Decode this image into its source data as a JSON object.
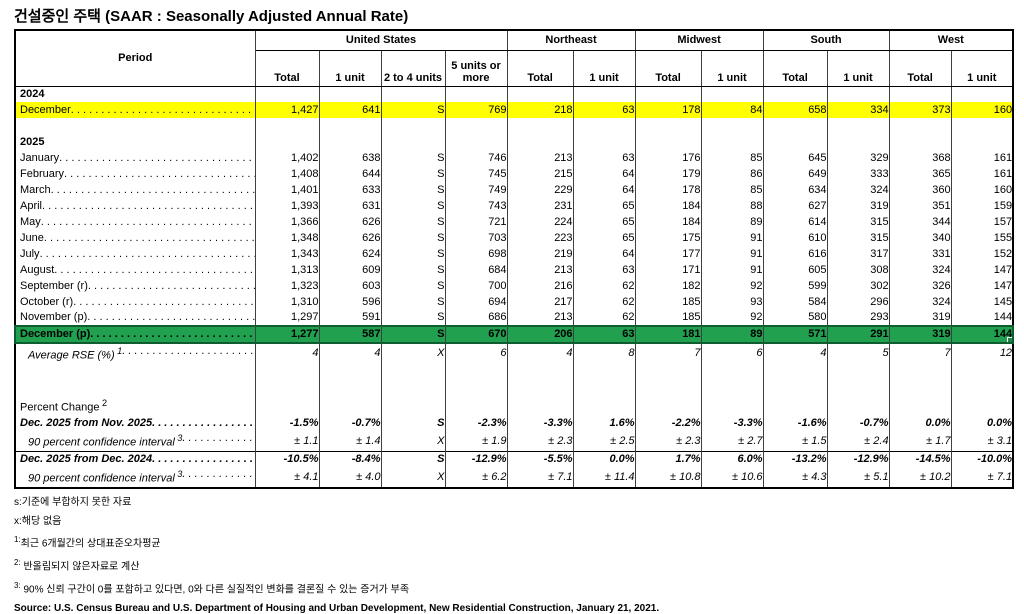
{
  "title": "건설중인 주택 (SAAR : Seasonally Adjusted Annual Rate)",
  "colors": {
    "highlight_yellow": "#ffff00",
    "highlight_green": "#21a050",
    "green_border": "#0e5c2f"
  },
  "table": {
    "period_header": "Period",
    "col_groups": [
      {
        "label": "United States",
        "span": 4
      },
      {
        "label": "Northeast",
        "span": 2
      },
      {
        "label": "Midwest",
        "span": 2
      },
      {
        "label": "South",
        "span": 2
      },
      {
        "label": "West",
        "span": 2
      }
    ],
    "sub_headers": [
      "Total",
      "1 unit",
      "2 to 4 units",
      "5 units or more",
      "Total",
      "1 unit",
      "Total",
      "1 unit",
      "Total",
      "1 unit",
      "Total",
      "1 unit"
    ],
    "col_ids": [
      "us-total",
      "us-1unit",
      "us-2to4",
      "us-5plus",
      "ne-total",
      "ne-1unit",
      "mw-total",
      "mw-1unit",
      "s-total",
      "s-1unit",
      "w-total",
      "w-1unit"
    ],
    "rows": [
      {
        "type": "year",
        "label": "2024"
      },
      {
        "type": "data",
        "highlight": "yellow",
        "label": "December",
        "values": [
          "1,427",
          "641",
          "S",
          "769",
          "218",
          "63",
          "178",
          "84",
          "658",
          "334",
          "373",
          "160"
        ]
      },
      {
        "type": "blank"
      },
      {
        "type": "year",
        "label": "2025"
      },
      {
        "type": "data",
        "label": "January",
        "values": [
          "1,402",
          "638",
          "S",
          "746",
          "213",
          "63",
          "176",
          "85",
          "645",
          "329",
          "368",
          "161"
        ]
      },
      {
        "type": "data",
        "label": "February",
        "values": [
          "1,408",
          "644",
          "S",
          "745",
          "215",
          "64",
          "179",
          "86",
          "649",
          "333",
          "365",
          "161"
        ]
      },
      {
        "type": "data",
        "label": "March",
        "values": [
          "1,401",
          "633",
          "S",
          "749",
          "229",
          "64",
          "178",
          "85",
          "634",
          "324",
          "360",
          "160"
        ]
      },
      {
        "type": "data",
        "label": "April",
        "values": [
          "1,393",
          "631",
          "S",
          "743",
          "231",
          "65",
          "184",
          "88",
          "627",
          "319",
          "351",
          "159"
        ]
      },
      {
        "type": "data",
        "label": "May",
        "values": [
          "1,366",
          "626",
          "S",
          "721",
          "224",
          "65",
          "184",
          "89",
          "614",
          "315",
          "344",
          "157"
        ]
      },
      {
        "type": "data",
        "label": "June",
        "values": [
          "1,348",
          "626",
          "S",
          "703",
          "223",
          "65",
          "175",
          "91",
          "610",
          "315",
          "340",
          "155"
        ]
      },
      {
        "type": "data",
        "label": "July",
        "values": [
          "1,343",
          "624",
          "S",
          "698",
          "219",
          "64",
          "177",
          "91",
          "616",
          "317",
          "331",
          "152"
        ]
      },
      {
        "type": "data",
        "label": "August",
        "values": [
          "1,313",
          "609",
          "S",
          "684",
          "213",
          "63",
          "171",
          "91",
          "605",
          "308",
          "324",
          "147"
        ]
      },
      {
        "type": "data",
        "label": "September (r)",
        "values": [
          "1,323",
          "603",
          "S",
          "700",
          "216",
          "62",
          "182",
          "92",
          "599",
          "302",
          "326",
          "147"
        ]
      },
      {
        "type": "data",
        "label": "October (r)",
        "values": [
          "1,310",
          "596",
          "S",
          "694",
          "217",
          "62",
          "185",
          "93",
          "584",
          "296",
          "324",
          "145"
        ]
      },
      {
        "type": "data",
        "label": "November (p)",
        "values": [
          "1,297",
          "591",
          "S",
          "686",
          "213",
          "62",
          "185",
          "92",
          "580",
          "293",
          "319",
          "144"
        ]
      },
      {
        "type": "data",
        "highlight": "green",
        "label": "December (p)",
        "values": [
          "1,277",
          "587",
          "S",
          "670",
          "206",
          "63",
          "181",
          "89",
          "571",
          "291",
          "319",
          "144"
        ]
      },
      {
        "type": "rse",
        "label": "Average RSE (%)",
        "sup": "1",
        "values": [
          "4",
          "4",
          "X",
          "6",
          "4",
          "8",
          "7",
          "6",
          "4",
          "5",
          "7",
          "12"
        ]
      },
      {
        "type": "blank"
      },
      {
        "type": "blank"
      },
      {
        "type": "section",
        "label": "Percent Change",
        "sup": "2"
      },
      {
        "type": "pct",
        "label": "Dec. 2025 from Nov. 2025",
        "values": [
          "-1.5%",
          "-0.7%",
          "S",
          "-2.3%",
          "-3.3%",
          "1.6%",
          "-2.2%",
          "-3.3%",
          "-1.6%",
          "-0.7%",
          "0.0%",
          "0.0%"
        ]
      },
      {
        "type": "ci",
        "label": "90 percent confidence interval",
        "sup": "3",
        "values": [
          "± 1.1",
          "± 1.4",
          "X",
          "± 1.9",
          "± 2.3",
          "± 2.5",
          "± 2.3",
          "± 2.7",
          "± 1.5",
          "± 2.4",
          "± 1.7",
          "± 3.1"
        ]
      },
      {
        "type": "pct",
        "divider": true,
        "label": "Dec. 2025 from Dec. 2024",
        "values": [
          "-10.5%",
          "-8.4%",
          "S",
          "-12.9%",
          "-5.5%",
          "0.0%",
          "1.7%",
          "6.0%",
          "-13.2%",
          "-12.9%",
          "-14.5%",
          "-10.0%"
        ]
      },
      {
        "type": "ci",
        "label": "90 percent confidence interval",
        "sup": "3",
        "values": [
          "± 4.1",
          "± 4.0",
          "X",
          "± 6.2",
          "± 7.1",
          "± 11.4",
          "± 10.8",
          "± 10.6",
          "± 4.3",
          "± 5.1",
          "± 10.2",
          "± 7.1"
        ]
      }
    ]
  },
  "footnotes": [
    {
      "text": "s:기준에 부합하지 못한 자료"
    },
    {
      "text": "x:해당 없음"
    },
    {
      "sup": "1:",
      "text": "최근 6개월간의 상대표준오차평균"
    },
    {
      "sup": "2:",
      "text": " 반올림되지 않은자료로 계산"
    },
    {
      "sup": "3:",
      "text": " 90% 신뢰 구간이 0를 포함하고 있다면, 0와 다른 실질적인 변화를 결론질 수 있는 증거가 부족"
    }
  ],
  "source": "Source: U.S. Census Bureau and U.S. Department of Housing and Urban Development, New Residential Construction, January 21, 2021."
}
